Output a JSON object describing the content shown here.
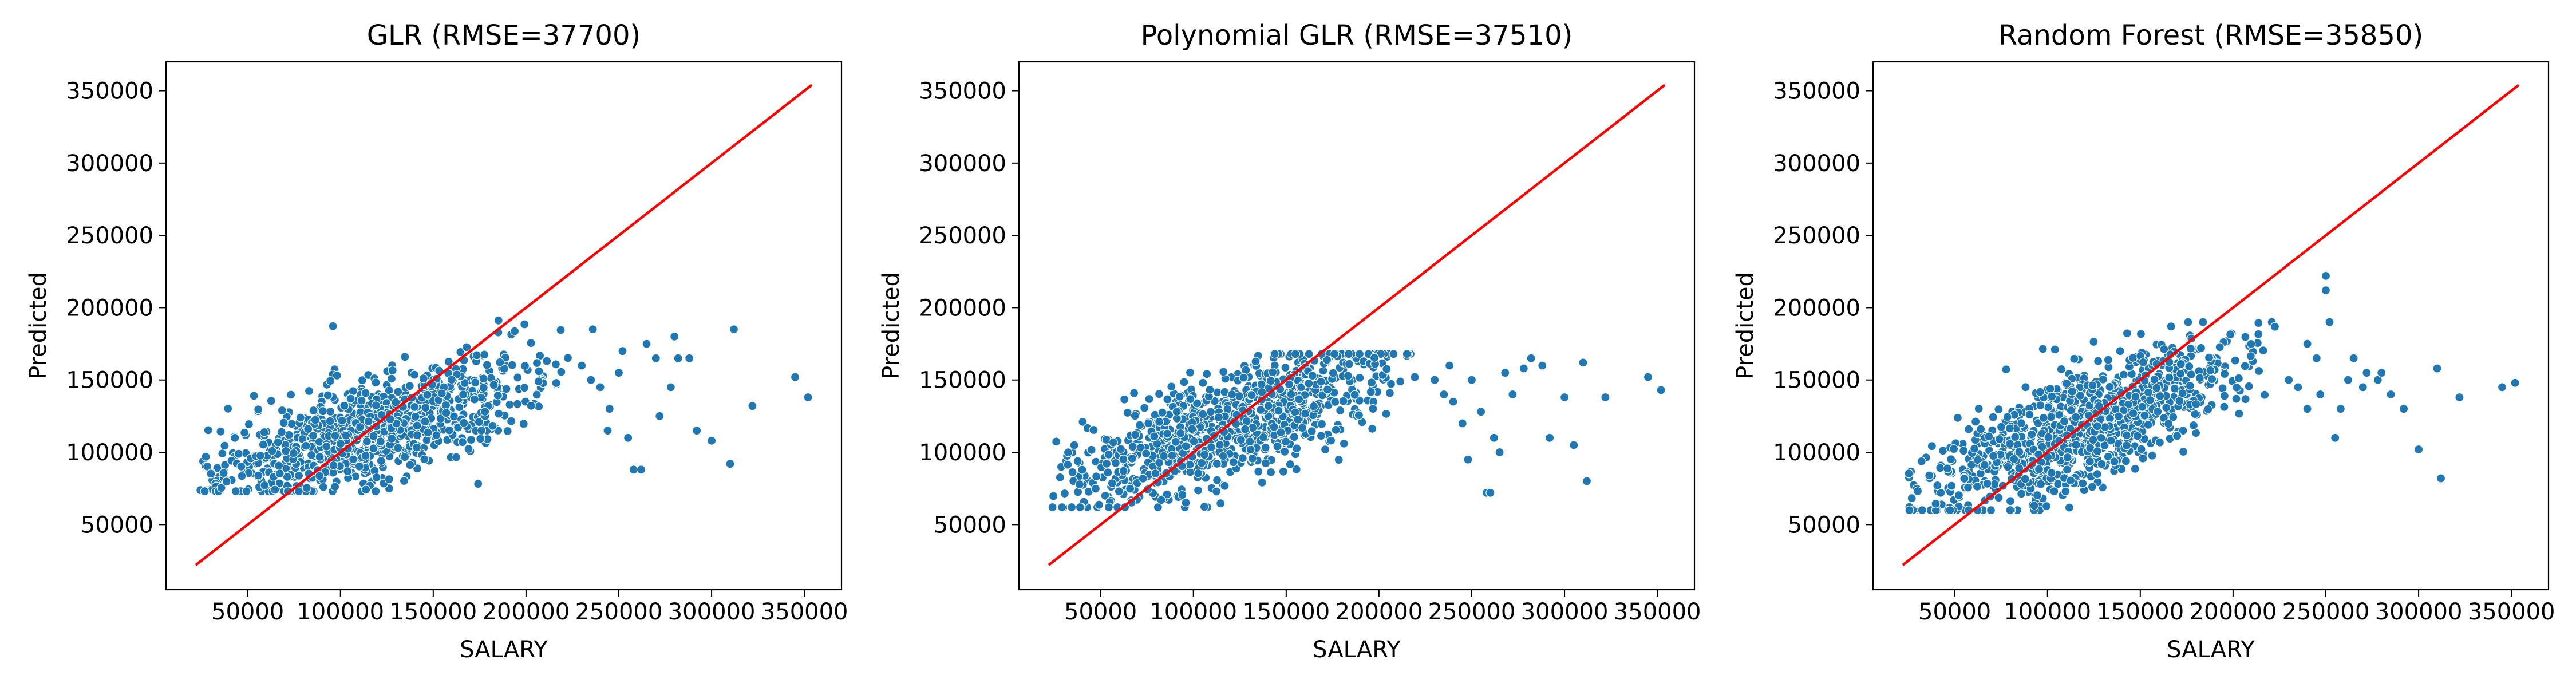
{
  "colors": {
    "points": "#1f77b4",
    "point_edge": "#ffffff",
    "identity_line": "#ff0000",
    "axes": "#000000"
  },
  "chart_data": [
    {
      "type": "scatter",
      "title": "GLR (RMSE=37700)",
      "xlabel": "SALARY",
      "ylabel": "Predicted",
      "xlim": [
        6000,
        370000
      ],
      "ylim": [
        5000,
        370000
      ],
      "xticks": [
        50000,
        100000,
        150000,
        200000,
        250000,
        300000,
        350000
      ],
      "yticks": [
        50000,
        100000,
        150000,
        200000,
        250000,
        300000,
        350000
      ],
      "identity_line": {
        "from": [
          22000,
          22000
        ],
        "to": [
          354000,
          354000
        ]
      },
      "grid": false,
      "series": [
        {
          "model": {
            "center_x": 120000,
            "base": 68000,
            "slope": 0.4,
            "noise": 17000,
            "ymin": 73000,
            "ymax": 192000,
            "n": 1000
          },
          "outliers": [
            [
              230000,
              160000
            ],
            [
              235000,
              150000
            ],
            [
              240000,
              145000
            ],
            [
              245000,
              130000
            ],
            [
              250000,
              155000
            ],
            [
              252000,
              170000
            ],
            [
              255000,
              110000
            ],
            [
              258000,
              88000
            ],
            [
              262000,
              88000
            ],
            [
              265000,
              175000
            ],
            [
              270000,
              165000
            ],
            [
              272000,
              125000
            ],
            [
              278000,
              145000
            ],
            [
              280000,
              180000
            ],
            [
              282000,
              165000
            ],
            [
              288000,
              165000
            ],
            [
              292000,
              115000
            ],
            [
              300000,
              108000
            ],
            [
              310000,
              92000
            ],
            [
              312000,
              185000
            ],
            [
              322000,
              132000
            ],
            [
              345000,
              152000
            ],
            [
              352000,
              138000
            ],
            [
              236000,
              185000
            ],
            [
              244000,
              115000
            ]
          ]
        }
      ]
    },
    {
      "type": "scatter",
      "title": "Polynomial GLR (RMSE=37510)",
      "xlabel": "SALARY",
      "ylabel": "Predicted",
      "xlim": [
        6000,
        370000
      ],
      "ylim": [
        5000,
        370000
      ],
      "xticks": [
        50000,
        100000,
        150000,
        200000,
        250000,
        300000,
        350000
      ],
      "yticks": [
        50000,
        100000,
        150000,
        200000,
        250000,
        300000,
        350000
      ],
      "identity_line": {
        "from": [
          22000,
          22000
        ],
        "to": [
          354000,
          354000
        ]
      },
      "grid": false,
      "series": [
        {
          "model": {
            "center_x": 120000,
            "base": 62000,
            "slope": 0.48,
            "noise": 18000,
            "ymin": 62000,
            "ymax": 168000,
            "n": 1000
          },
          "outliers": [
            [
              230000,
              150000
            ],
            [
              235000,
              140000
            ],
            [
              240000,
              135000
            ],
            [
              245000,
              120000
            ],
            [
              250000,
              150000
            ],
            [
              255000,
              128000
            ],
            [
              258000,
              72000
            ],
            [
              260000,
              72000
            ],
            [
              262000,
              110000
            ],
            [
              265000,
              100000
            ],
            [
              268000,
              155000
            ],
            [
              272000,
              140000
            ],
            [
              278000,
              158000
            ],
            [
              282000,
              165000
            ],
            [
              288000,
              160000
            ],
            [
              292000,
              110000
            ],
            [
              300000,
              138000
            ],
            [
              305000,
              105000
            ],
            [
              310000,
              162000
            ],
            [
              312000,
              80000
            ],
            [
              322000,
              138000
            ],
            [
              345000,
              152000
            ],
            [
              352000,
              143000
            ],
            [
              248000,
              95000
            ],
            [
              238000,
              160000
            ]
          ]
        }
      ]
    },
    {
      "type": "scatter",
      "title": "Random Forest (RMSE=35850)",
      "xlabel": "SALARY",
      "ylabel": "Predicted",
      "xlim": [
        6000,
        370000
      ],
      "ylim": [
        5000,
        370000
      ],
      "xticks": [
        50000,
        100000,
        150000,
        200000,
        250000,
        300000,
        350000
      ],
      "yticks": [
        50000,
        100000,
        150000,
        200000,
        250000,
        300000,
        350000
      ],
      "identity_line": {
        "from": [
          22000,
          22000
        ],
        "to": [
          354000,
          354000
        ]
      },
      "grid": false,
      "series": [
        {
          "model": {
            "center_x": 120000,
            "base": 55000,
            "slope": 0.52,
            "noise": 19000,
            "ymin": 60000,
            "ymax": 190000,
            "n": 1000
          },
          "outliers": [
            [
              230000,
              150000
            ],
            [
              235000,
              145000
            ],
            [
              240000,
              130000
            ],
            [
              245000,
              165000
            ],
            [
              250000,
              222000
            ],
            [
              250000,
              212000
            ],
            [
              252000,
              190000
            ],
            [
              255000,
              110000
            ],
            [
              258000,
              130000
            ],
            [
              262000,
              150000
            ],
            [
              265000,
              165000
            ],
            [
              270000,
              145000
            ],
            [
              272000,
              155000
            ],
            [
              278000,
              150000
            ],
            [
              280000,
              155000
            ],
            [
              285000,
              140000
            ],
            [
              292000,
              130000
            ],
            [
              300000,
              102000
            ],
            [
              310000,
              158000
            ],
            [
              312000,
              82000
            ],
            [
              322000,
              138000
            ],
            [
              345000,
              145000
            ],
            [
              352000,
              148000
            ],
            [
              240000,
              175000
            ],
            [
              247000,
              140000
            ]
          ]
        }
      ]
    }
  ]
}
